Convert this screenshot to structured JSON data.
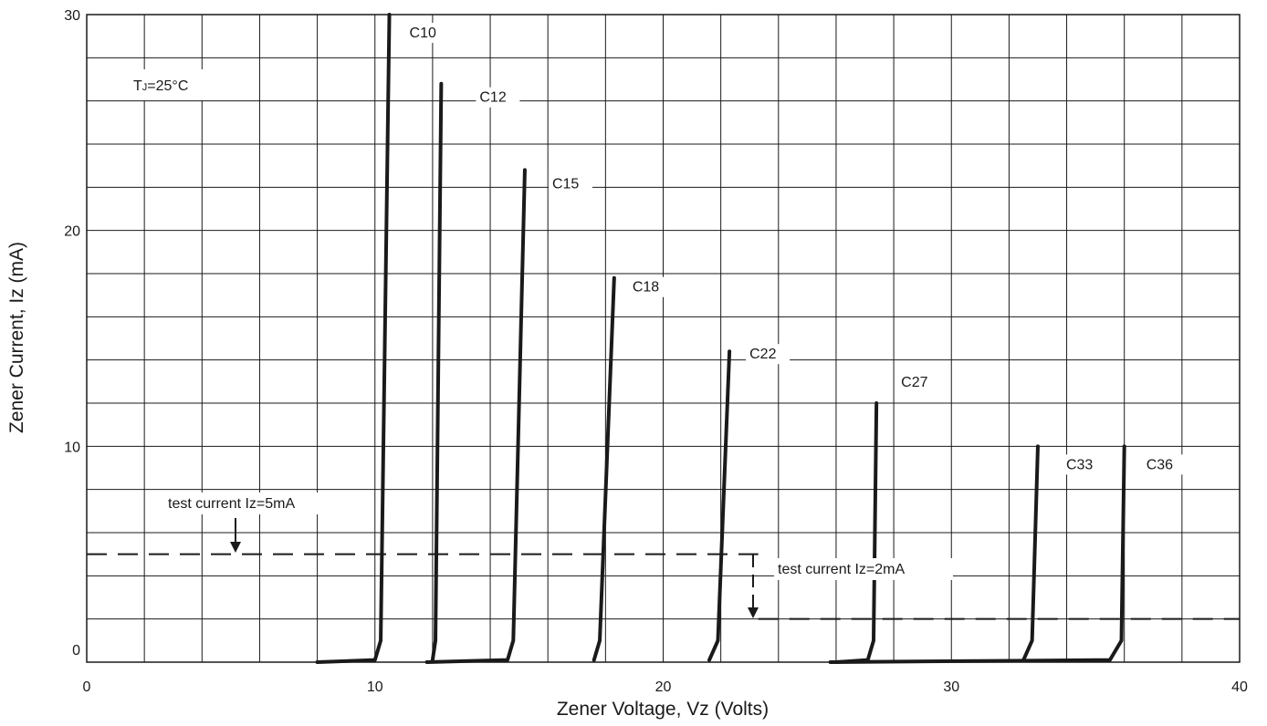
{
  "chart_data": {
    "type": "line",
    "title": "",
    "xlabel": "Zener Voltage, Vz (Volts)",
    "ylabel": "Zener Current, Iz (mA)",
    "xlim": [
      0,
      40
    ],
    "ylim": [
      0,
      30
    ],
    "x_ticks": [
      0,
      10,
      20,
      30,
      40
    ],
    "y_ticks": [
      0,
      10,
      20,
      30
    ],
    "grid": true,
    "line_color": "#1a1a1a",
    "annotations": {
      "temperature": {
        "prefix": "T",
        "subscript": "J",
        "suffix": "=25°C"
      },
      "test_current_5mA": {
        "text": "test current Iz=5mA",
        "level_mA": 5
      },
      "test_current_2mA": {
        "text": "test current Iz=2mA",
        "level_mA": 2
      }
    },
    "series": [
      {
        "name": "C10",
        "x": [
          8.0,
          10.0,
          10.2,
          10.5
        ],
        "y": [
          0,
          0.1,
          1,
          30
        ]
      },
      {
        "name": "C12",
        "x": [
          12.0,
          12.1,
          12.3
        ],
        "y": [
          0.1,
          1,
          26.8
        ]
      },
      {
        "name": "C15",
        "x": [
          11.8,
          14.6,
          14.8,
          15.2
        ],
        "y": [
          0,
          0.1,
          1,
          22.8
        ]
      },
      {
        "name": "C18",
        "x": [
          17.6,
          17.8,
          18.3
        ],
        "y": [
          0.1,
          1,
          17.8
        ]
      },
      {
        "name": "C22",
        "x": [
          21.6,
          21.9,
          22.3
        ],
        "y": [
          0.1,
          1,
          14.4
        ]
      },
      {
        "name": "C27",
        "x": [
          26.0,
          27.1,
          27.3,
          27.4
        ],
        "y": [
          0,
          0.1,
          1,
          12
        ]
      },
      {
        "name": "C33",
        "x": [
          32.5,
          32.8,
          33.0
        ],
        "y": [
          0.1,
          1,
          10
        ]
      },
      {
        "name": "C36",
        "x": [
          25.8,
          35.5,
          35.9,
          36.0
        ],
        "y": [
          0,
          0.1,
          1,
          10
        ]
      }
    ]
  }
}
